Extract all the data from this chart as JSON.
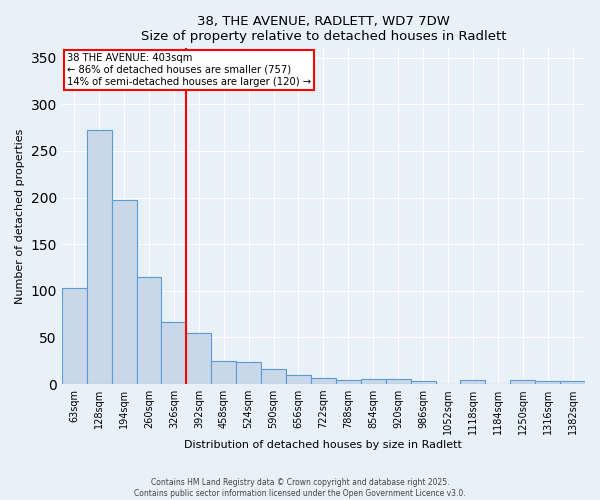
{
  "title": "38, THE AVENUE, RADLETT, WD7 7DW",
  "subtitle": "Size of property relative to detached houses in Radlett",
  "xlabel": "Distribution of detached houses by size in Radlett",
  "ylabel": "Number of detached properties",
  "bar_color": "#c8d8e8",
  "bar_edge_color": "#5b9bd5",
  "categories": [
    "63sqm",
    "128sqm",
    "194sqm",
    "260sqm",
    "326sqm",
    "392sqm",
    "458sqm",
    "524sqm",
    "590sqm",
    "656sqm",
    "722sqm",
    "788sqm",
    "854sqm",
    "920sqm",
    "986sqm",
    "1052sqm",
    "1118sqm",
    "1184sqm",
    "1250sqm",
    "1316sqm",
    "1382sqm"
  ],
  "values": [
    103,
    272,
    197,
    115,
    67,
    55,
    25,
    24,
    16,
    10,
    7,
    4,
    5,
    5,
    3,
    0,
    4,
    0,
    4,
    3,
    3
  ],
  "red_line_index": 5,
  "annotation_text_line1": "38 THE AVENUE: 403sqm",
  "annotation_text_line2": "← 86% of detached houses are smaller (757)",
  "annotation_text_line3": "14% of semi-detached houses are larger (120) →",
  "annotation_box_color": "white",
  "annotation_box_edge": "red",
  "ylim": [
    0,
    360
  ],
  "yticks": [
    0,
    50,
    100,
    150,
    200,
    250,
    300,
    350
  ],
  "background_color": "#e8f0f8",
  "grid_color": "white",
  "footer_line1": "Contains HM Land Registry data © Crown copyright and database right 2025.",
  "footer_line2": "Contains public sector information licensed under the Open Government Licence v3.0."
}
